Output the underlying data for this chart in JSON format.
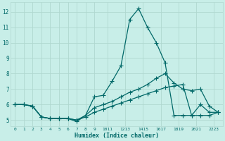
{
  "xlabel": "Humidex (Indice chaleur)",
  "bg_color": "#c8eee8",
  "grid_color": "#b0d8d0",
  "line_color": "#006868",
  "line_width": 0.9,
  "marker": "+",
  "marker_size": 4.0,
  "xlim": [
    -0.5,
    23.5
  ],
  "ylim": [
    4.6,
    12.6
  ],
  "yticks": [
    5,
    6,
    7,
    8,
    9,
    10,
    11,
    12
  ],
  "xtick_labels": [
    "0",
    "1",
    "2",
    "3",
    "4",
    "5",
    "6",
    "7",
    "8",
    "9",
    "1011",
    "1213",
    "1415",
    "1617",
    "1819",
    "2021",
    "2223"
  ],
  "xtick_positions": [
    0,
    1,
    2,
    3,
    4,
    5,
    6,
    7,
    8,
    9,
    10.5,
    12.5,
    14.5,
    16.5,
    18.5,
    20.5,
    22.5
  ],
  "series": [
    {
      "x": [
        0,
        1,
        2,
        3,
        4,
        5,
        6,
        7,
        8,
        9,
        10,
        11,
        12,
        13,
        14,
        15,
        16,
        17,
        18,
        19,
        20,
        21,
        22,
        23
      ],
      "y": [
        6.0,
        6.0,
        5.9,
        5.2,
        5.1,
        5.1,
        5.1,
        4.9,
        5.3,
        6.5,
        6.6,
        7.5,
        8.5,
        11.5,
        12.2,
        11.0,
        10.0,
        8.7,
        5.3,
        5.3,
        5.3,
        6.0,
        5.5,
        5.5
      ]
    },
    {
      "x": [
        0,
        1,
        2,
        3,
        4,
        5,
        6,
        7,
        8,
        9,
        10,
        11,
        12,
        13,
        14,
        15,
        16,
        17,
        18,
        19,
        20,
        21,
        22,
        23
      ],
      "y": [
        6.0,
        6.0,
        5.9,
        5.2,
        5.1,
        5.1,
        5.1,
        5.0,
        5.3,
        5.8,
        6.0,
        6.2,
        6.5,
        6.8,
        7.0,
        7.3,
        7.7,
        8.0,
        7.4,
        7.0,
        6.9,
        7.0,
        5.9,
        5.5
      ]
    },
    {
      "x": [
        0,
        1,
        2,
        3,
        4,
        5,
        6,
        7,
        8,
        9,
        10,
        11,
        12,
        13,
        14,
        15,
        16,
        17,
        18,
        19,
        20,
        21,
        22,
        23
      ],
      "y": [
        6.0,
        6.0,
        5.9,
        5.2,
        5.1,
        5.1,
        5.1,
        5.0,
        5.2,
        5.5,
        5.7,
        5.9,
        6.1,
        6.3,
        6.5,
        6.7,
        6.9,
        7.1,
        7.2,
        7.3,
        5.3,
        5.3,
        5.3,
        5.5
      ]
    }
  ]
}
